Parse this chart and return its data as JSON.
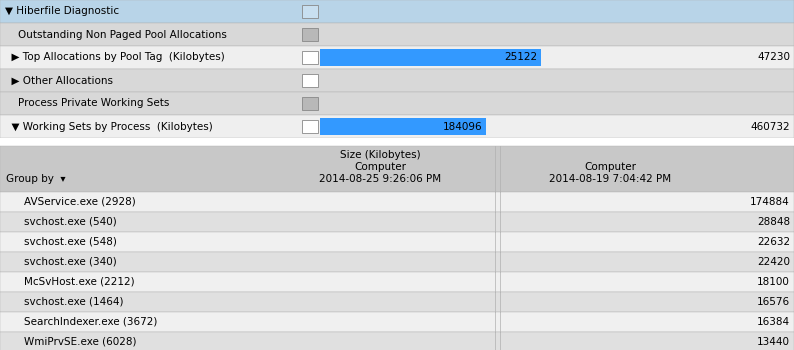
{
  "title_rows": [
    {
      "label": "▼ Hiberfile Diagnostic",
      "has_bar": false,
      "bar_value": null,
      "bar_max": null,
      "right_value": null,
      "bg": "#b8d4e8",
      "bar_color": null,
      "small_box_color": "#c8dff0"
    },
    {
      "label": "    Outstanding Non Paged Pool Allocations",
      "has_bar": false,
      "bar_value": null,
      "bar_max": null,
      "right_value": null,
      "bg": "#d8d8d8",
      "bar_color": null,
      "small_box_color": "#b8b8b8"
    },
    {
      "label": "  ▶ Top Allocations by Pool Tag  (Kilobytes)",
      "has_bar": true,
      "bar_value": 25122,
      "bar_max": 47230,
      "right_value": "47230",
      "bg": "#efefef",
      "bar_color": "#3399ff",
      "small_box_color": "#ffffff"
    },
    {
      "label": "  ▶ Other Allocations",
      "has_bar": false,
      "bar_value": null,
      "bar_max": null,
      "right_value": null,
      "bg": "#d8d8d8",
      "bar_color": null,
      "small_box_color": "#ffffff"
    },
    {
      "label": "    Process Private Working Sets",
      "has_bar": false,
      "bar_value": null,
      "bar_max": null,
      "right_value": null,
      "bg": "#d8d8d8",
      "bar_color": null,
      "small_box_color": "#b8b8b8"
    },
    {
      "label": "  ▼ Working Sets by Process  (Kilobytes)",
      "has_bar": true,
      "bar_value": 184096,
      "bar_max": 460732,
      "right_value": "460732",
      "bg": "#efefef",
      "bar_color": "#3399ff",
      "small_box_color": "#ffffff"
    }
  ],
  "table_header_bg": "#c8c8c8",
  "table_rows": [
    {
      "label": "AVService.exe (2928)",
      "val2": "174884",
      "bg": "#f0f0f0"
    },
    {
      "label": "svchost.exe (540)",
      "val2": "28848",
      "bg": "#e0e0e0"
    },
    {
      "label": "svchost.exe (548)",
      "val2": "22632",
      "bg": "#f0f0f0"
    },
    {
      "label": "svchost.exe (340)",
      "val2": "22420",
      "bg": "#e0e0e0"
    },
    {
      "label": "McSvHost.exe (2212)",
      "val2": "18100",
      "bg": "#f0f0f0"
    },
    {
      "label": "svchost.exe (1464)",
      "val2": "16576",
      "bg": "#e0e0e0"
    },
    {
      "label": "SearchIndexer.exe (3672)",
      "val2": "16384",
      "bg": "#f0f0f0"
    },
    {
      "label": "WmiPrvSE.exe (6028)",
      "val2": "13440",
      "bg": "#e0e0e0"
    }
  ],
  "border_color": "#b0b0b0",
  "text_color": "#000000",
  "font_size": 7.5
}
